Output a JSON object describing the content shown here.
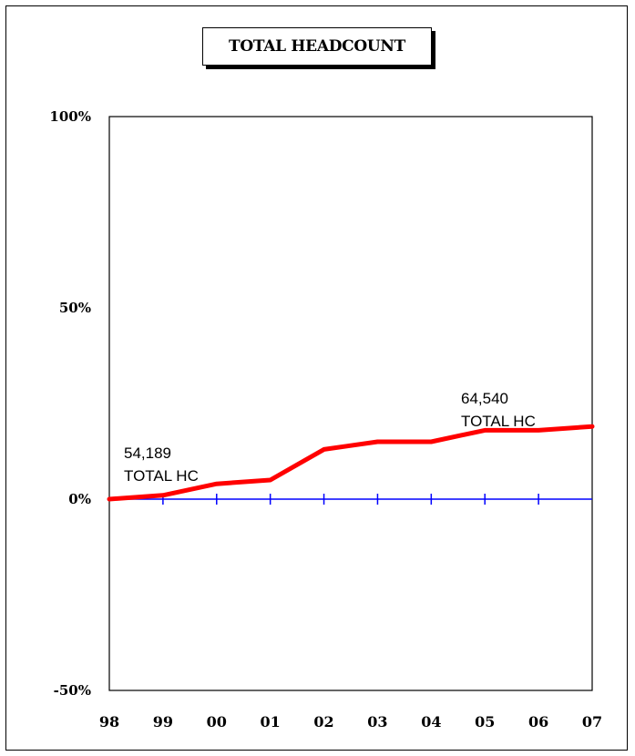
{
  "chart_data": {
    "type": "line",
    "title": "TOTAL HEADCOUNT",
    "xlabel": "",
    "ylabel": "",
    "categories": [
      "98",
      "99",
      "00",
      "01",
      "02",
      "03",
      "04",
      "05",
      "06",
      "07"
    ],
    "yticks": [
      "100%",
      "50%",
      "0%",
      "-50%"
    ],
    "ytick_values": [
      100,
      50,
      0,
      -50
    ],
    "ylim": [
      -50,
      100
    ],
    "series": [
      {
        "color": "#ff0000",
        "values": [
          0,
          1,
          4,
          5,
          13,
          15,
          15,
          18,
          18,
          19
        ]
      }
    ],
    "baseline": {
      "value": 0,
      "color": "#0000ff"
    },
    "annotations": [
      {
        "category": "98",
        "value": "54,189",
        "label": "TOTAL HC"
      },
      {
        "category": "07",
        "value": "64,540",
        "label": "TOTAL HC"
      }
    ],
    "grid": false,
    "legend": "none"
  }
}
